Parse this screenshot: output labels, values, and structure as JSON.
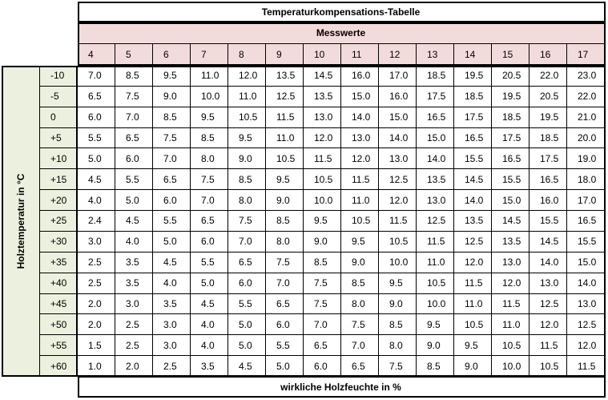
{
  "table": {
    "title": "Temperaturkompensations-Tabelle",
    "group_header": "Messwerte",
    "columns": [
      "4",
      "5",
      "6",
      "7",
      "8",
      "9",
      "10",
      "11",
      "12",
      "13",
      "14",
      "15",
      "16",
      "17"
    ],
    "row_axis_label": "Holztemperatur in °C",
    "rows": [
      {
        "label": "-10",
        "cells": [
          "7.0",
          "8.5",
          "9.5",
          "11.0",
          "12.0",
          "13.5",
          "14.5",
          "16.0",
          "17.0",
          "18.5",
          "19.5",
          "20.5",
          "22.0",
          "23.0"
        ]
      },
      {
        "label": "-5",
        "cells": [
          "6.5",
          "7.5",
          "9.0",
          "10.0",
          "11.0",
          "12.5",
          "13.5",
          "15.0",
          "16.0",
          "17.5",
          "18.5",
          "19.5",
          "20.5",
          "22.0"
        ]
      },
      {
        "label": "0",
        "cells": [
          "6.0",
          "7.0",
          "8.5",
          "9.5",
          "10.5",
          "11.5",
          "13.0",
          "14.0",
          "15.0",
          "16.5",
          "17.5",
          "18.5",
          "19.5",
          "21.0"
        ]
      },
      {
        "label": "+5",
        "cells": [
          "5.5",
          "6.5",
          "7.5",
          "8.5",
          "9.5",
          "11.0",
          "12.0",
          "13.0",
          "14.0",
          "15.0",
          "16.5",
          "17.5",
          "18.5",
          "20.0"
        ]
      },
      {
        "label": "+10",
        "cells": [
          "5.0",
          "6.0",
          "7.0",
          "8.0",
          "9.0",
          "10.5",
          "11.5",
          "12.0",
          "13.0",
          "14.0",
          "15.5",
          "16.5",
          "17.5",
          "19.0"
        ]
      },
      {
        "label": "+15",
        "cells": [
          "4.5",
          "5.5",
          "6.5",
          "7.5",
          "8.5",
          "9.5",
          "10.5",
          "11.5",
          "12.5",
          "13.5",
          "14.5",
          "15.5",
          "16.5",
          "18.0"
        ]
      },
      {
        "label": "+20",
        "cells": [
          "4.0",
          "5.0",
          "6.0",
          "7.0",
          "8.0",
          "9.0",
          "10.0",
          "11.0",
          "12.0",
          "13.0",
          "14.0",
          "15.0",
          "16.0",
          "17.0"
        ]
      },
      {
        "label": "+25",
        "cells": [
          "2.4",
          "4.5",
          "5.5",
          "6.5",
          "7.5",
          "8.5",
          "9.5",
          "10.5",
          "11.5",
          "12.5",
          "13.5",
          "14.5",
          "15.5",
          "16.5"
        ]
      },
      {
        "label": "+30",
        "cells": [
          "3.0",
          "4.0",
          "5.0",
          "6.0",
          "7.0",
          "8.0",
          "9.0",
          "9.5",
          "10.5",
          "11.5",
          "12.5",
          "13.5",
          "14.5",
          "15.5"
        ]
      },
      {
        "label": "+35",
        "cells": [
          "2.5",
          "3.5",
          "4.5",
          "5.5",
          "6.5",
          "7.5",
          "8.5",
          "9.0",
          "10.0",
          "11.0",
          "12.0",
          "13.0",
          "14.0",
          "15.0"
        ]
      },
      {
        "label": "+40",
        "cells": [
          "2.5",
          "3.5",
          "4.0",
          "5.0",
          "6.0",
          "7.0",
          "7.5",
          "8.5",
          "9.5",
          "10.5",
          "11.5",
          "12.0",
          "13.0",
          "14.0"
        ]
      },
      {
        "label": "+45",
        "cells": [
          "2.0",
          "3.0",
          "3.5",
          "4.5",
          "5.5",
          "6.5",
          "7.5",
          "8.0",
          "9.0",
          "10.0",
          "11.0",
          "11.5",
          "12.5",
          "13.0"
        ]
      },
      {
        "label": "+50",
        "cells": [
          "2.0",
          "2.5",
          "3.0",
          "4.0",
          "5.0",
          "6.0",
          "7.0",
          "7.5",
          "8.5",
          "9.5",
          "10.5",
          "11.0",
          "12.0",
          "12.5"
        ]
      },
      {
        "label": "+55",
        "cells": [
          "1.5",
          "2.5",
          "3.0",
          "4.0",
          "5.0",
          "5.5",
          "6.5",
          "7.0",
          "8.0",
          "9.0",
          "9.5",
          "10.5",
          "11.5",
          "12.0"
        ]
      },
      {
        "label": "+60",
        "cells": [
          "1.0",
          "2.0",
          "2.5",
          "3.5",
          "4.5",
          "5.0",
          "6.0",
          "6.5",
          "7.5",
          "8.5",
          "9.0",
          "10.0",
          "10.5",
          "11.5"
        ]
      }
    ],
    "footer": "wirkliche Holzfeuchte in %"
  }
}
